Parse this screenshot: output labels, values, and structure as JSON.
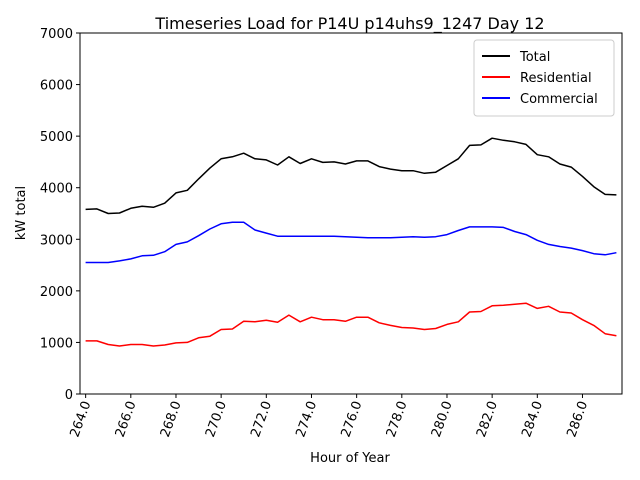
{
  "chart_data": {
    "type": "line",
    "title": "Timeseries Load for P14U p14uhs9_1247  Day 12",
    "xlabel": "Hour of Year",
    "ylabel": "kW total",
    "xlim": [
      263.75,
      287.75
    ],
    "ylim": [
      0,
      7000
    ],
    "xticks": [
      264,
      266,
      268,
      270,
      272,
      274,
      276,
      278,
      280,
      282,
      284,
      286
    ],
    "xtick_labels": [
      "264.0",
      "266.0",
      "268.0",
      "270.0",
      "272.0",
      "274.0",
      "276.0",
      "278.0",
      "280.0",
      "282.0",
      "284.0",
      "286.0"
    ],
    "yticks": [
      0,
      1000,
      2000,
      3000,
      4000,
      5000,
      6000,
      7000
    ],
    "ytick_labels": [
      "0",
      "1000",
      "2000",
      "3000",
      "4000",
      "5000",
      "6000",
      "7000"
    ],
    "legend_position": "top-right",
    "x": [
      264.0,
      264.5,
      265.0,
      265.5,
      266.0,
      266.5,
      267.0,
      267.5,
      268.0,
      268.5,
      269.0,
      269.5,
      270.0,
      270.5,
      271.0,
      271.5,
      272.0,
      272.5,
      273.0,
      273.5,
      274.0,
      274.5,
      275.0,
      275.5,
      276.0,
      276.5,
      277.0,
      277.5,
      278.0,
      278.5,
      279.0,
      279.5,
      280.0,
      280.5,
      281.0,
      281.5,
      282.0,
      282.5,
      283.0,
      283.5,
      284.0,
      284.5,
      285.0,
      285.5,
      286.0,
      286.5,
      287.0,
      287.5
    ],
    "series": [
      {
        "name": "Total",
        "color": "#000000",
        "values": [
          3580,
          3590,
          3500,
          3510,
          3600,
          3640,
          3620,
          3700,
          3900,
          3950,
          4170,
          4380,
          4560,
          4600,
          4670,
          4560,
          4540,
          4440,
          4600,
          4470,
          4560,
          4490,
          4500,
          4460,
          4520,
          4520,
          4410,
          4360,
          4330,
          4330,
          4280,
          4300,
          4430,
          4560,
          4820,
          4830,
          4960,
          4920,
          4890,
          4840,
          4640,
          4600,
          4460,
          4400,
          4220,
          4020,
          3870,
          3860
        ]
      },
      {
        "name": "Residential",
        "color": "#ff0000",
        "values": [
          1030,
          1030,
          960,
          930,
          960,
          960,
          930,
          950,
          990,
          1000,
          1090,
          1120,
          1250,
          1260,
          1410,
          1400,
          1430,
          1390,
          1530,
          1400,
          1490,
          1440,
          1440,
          1410,
          1490,
          1490,
          1380,
          1330,
          1290,
          1280,
          1250,
          1270,
          1350,
          1400,
          1590,
          1600,
          1710,
          1720,
          1740,
          1760,
          1660,
          1700,
          1590,
          1570,
          1440,
          1330,
          1170,
          1130
        ]
      },
      {
        "name": "Commercial",
        "color": "#0000ff",
        "values": [
          2550,
          2550,
          2550,
          2580,
          2620,
          2680,
          2690,
          2760,
          2900,
          2950,
          3070,
          3200,
          3300,
          3330,
          3330,
          3180,
          3120,
          3060,
          3060,
          3060,
          3060,
          3060,
          3060,
          3050,
          3040,
          3030,
          3030,
          3030,
          3040,
          3050,
          3040,
          3050,
          3090,
          3170,
          3240,
          3240,
          3240,
          3230,
          3150,
          3090,
          2980,
          2900,
          2860,
          2830,
          2780,
          2720,
          2700,
          2740
        ]
      }
    ]
  }
}
